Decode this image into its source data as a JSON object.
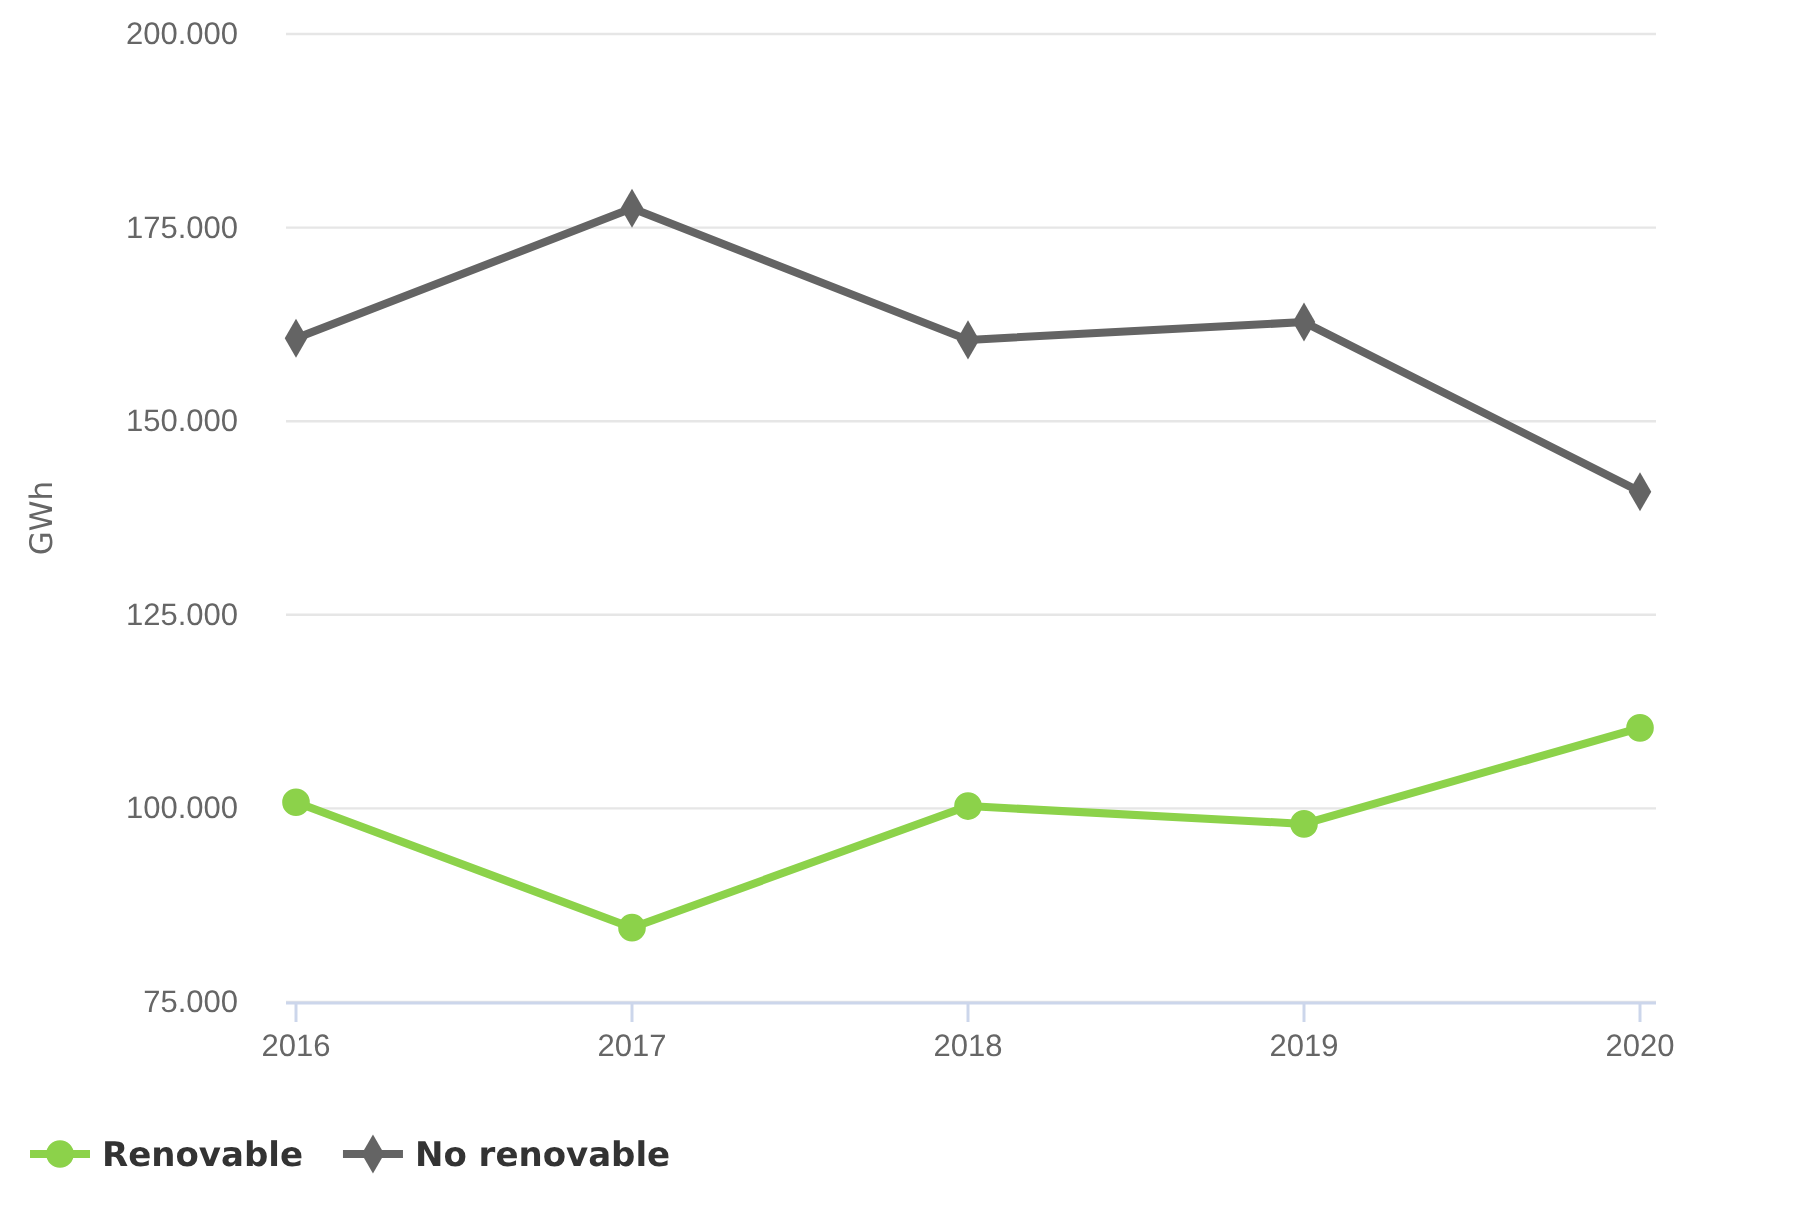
{
  "chart_data": {
    "type": "line",
    "ylabel": "GWh",
    "categories": [
      "2016",
      "2017",
      "2018",
      "2019",
      "2020"
    ],
    "series": [
      {
        "name": "Renovable",
        "color": "#8cd24a",
        "marker": "circle",
        "values": [
          100800,
          84600,
          100300,
          98000,
          110400
        ]
      },
      {
        "name": "No renovable",
        "color": "#646464",
        "marker": "diamond",
        "values": [
          160700,
          177500,
          160500,
          162800,
          140900
        ]
      }
    ],
    "ylim": [
      75000,
      200000
    ],
    "yticks": [
      {
        "value": 75000,
        "label": "75.000"
      },
      {
        "value": 100000,
        "label": "100.000"
      },
      {
        "value": 125000,
        "label": "125.000"
      },
      {
        "value": 150000,
        "label": "150.000"
      },
      {
        "value": 175000,
        "label": "175.000"
      },
      {
        "value": 200000,
        "label": "200.000"
      }
    ],
    "grid": "y",
    "legend": "bottom left",
    "line_style": "solid"
  }
}
